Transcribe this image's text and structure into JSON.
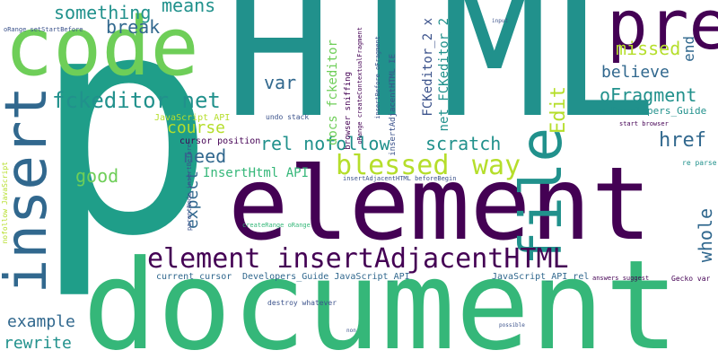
{
  "palette": {
    "dark_purple": "#440154",
    "indigo": "#3b528b",
    "blue": "#31688e",
    "teal": "#21918c",
    "green_teal": "#1f9e89",
    "green": "#35b779",
    "light_green": "#6ece58",
    "lime": "#b5de2b",
    "yellow": "#fde725"
  },
  "words": {
    "p": "p",
    "html": "HTML",
    "document": "document",
    "element": "element",
    "code": "code",
    "pre": "pre",
    "insert": "insert",
    "file": "file",
    "element_insertadjacenthtml": "element insertAdjacentHTML",
    "blessed": "blessed",
    "way": "way",
    "fckeditor_net": "fckeditor net",
    "rel_nofollow": "rel nofollow",
    "scratch": "scratch",
    "ofragment": "oFragment",
    "something": "something",
    "means": "means",
    "break": "break",
    "missed": "missed",
    "end": "end",
    "believe": "believe",
    "edit": "Edit",
    "var": "var",
    "course": "course",
    "need": "need",
    "good": "good",
    "expect": "expect",
    "href": "href",
    "whole": "whole",
    "example": "example",
    "rewrite": "rewrite",
    "insertHtml_api": "InsertHtml API",
    "docs_fckeditor": "docs fckeditor",
    "fckeditor_2_x": "FCKeditor_2 x",
    "net_fckeditor_2": "net FCKeditor_2",
    "x_developers_guide": "x Developers_Guide",
    "javascript_api": "JavaScript API",
    "cursor_position": "cursor position",
    "undo_stack": "undo stack",
    "current_cursor": "current cursor",
    "developers_guide_js": "Developers_Guide JavaScript_API",
    "javascript_api_rel": "JavaScript_API rel",
    "destroy_whatever": "destroy whatever",
    "gecko_var": "Gecko var",
    "answers_suggest": "answers suggest",
    "start_browser": "start browser",
    "browser_sniffing": "browser sniffing",
    "orange_createcontextualfragment": "oRange createContextualFragment",
    "insertadjacenthtml_ie": "insertAdjacentHTML IE",
    "insertbefore_ofragment": "insertBefore oFragment",
    "insertadjacenthtml_beforebegin": "insertAdjacentHTML beforeBegin",
    "orange_setstartbefore": "oRange setStartBefore",
    "nofollow_javascript": "nofollow JavaScript",
    "createrange_orange": "createRange oRange",
    "parentnode_insertbefore": "parentNode insertBefore",
    "re_parse": "re parse",
    "input": "input",
    "non": "non",
    "possible": "possible"
  }
}
